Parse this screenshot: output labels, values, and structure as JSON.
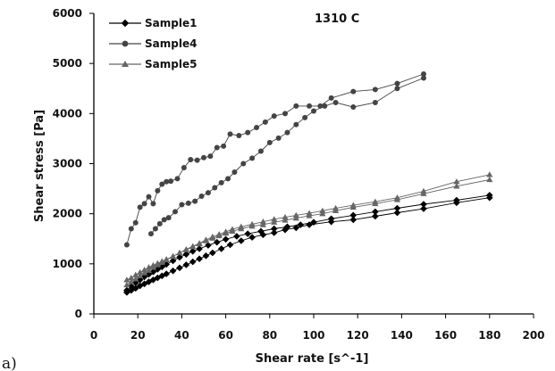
{
  "chart_data": {
    "type": "line",
    "title": "",
    "annotation": "1310 C",
    "panel_label": "a)",
    "xlabel": "Shear rate [s^-1]",
    "ylabel": "Shear stress [Pa]",
    "xlim": [
      0,
      200
    ],
    "ylim": [
      0,
      6000
    ],
    "xticks": [
      "0",
      "20",
      "40",
      "60",
      "80",
      "100",
      "120",
      "140",
      "160",
      "180",
      "200"
    ],
    "yticks": [
      "0",
      "1000",
      "2000",
      "3000",
      "4000",
      "5000",
      "6000"
    ],
    "grid": false,
    "legend_position": "top-left",
    "series": [
      {
        "name": "Sample1",
        "marker": "diamond",
        "color": "#000000",
        "branches": [
          {
            "x": [
              15,
              17,
              19,
              21,
              23,
              25,
              27,
              29,
              31,
              33,
              36,
              39,
              42,
              45,
              48,
              51,
              54,
              58,
              62,
              67,
              72,
              77,
              82,
              87,
              92,
              98,
              108,
              118,
              128,
              138,
              150,
              165,
              180
            ],
            "y": [
              430,
              470,
              510,
              560,
              600,
              640,
              680,
              720,
              760,
              800,
              860,
              920,
              980,
              1040,
              1100,
              1160,
              1220,
              1300,
              1380,
              1460,
              1530,
              1580,
              1620,
              1680,
              1720,
              1780,
              1840,
              1880,
              1950,
              2020,
              2100,
              2220,
              2320
            ]
          },
          {
            "x": [
              15,
              17,
              19,
              21,
              23,
              25,
              27,
              29,
              31,
              33,
              36,
              39,
              42,
              45,
              48,
              52,
              56,
              60,
              65,
              70,
              76,
              82,
              88,
              94,
              100,
              108,
              118,
              128,
              138,
              150,
              165,
              180
            ],
            "y": [
              470,
              550,
              620,
              680,
              740,
              790,
              840,
              890,
              940,
              990,
              1060,
              1130,
              1190,
              1250,
              1300,
              1370,
              1430,
              1490,
              1550,
              1600,
              1650,
              1700,
              1740,
              1780,
              1830,
              1900,
              1970,
              2040,
              2110,
              2190,
              2270,
              2370
            ]
          }
        ]
      },
      {
        "name": "Sample4",
        "marker": "circle",
        "color": "#444444",
        "branches": [
          {
            "x": [
              15,
              17,
              19,
              21,
              23,
              25,
              27,
              29,
              31,
              33,
              35,
              38,
              41,
              44,
              47,
              50,
              53,
              56,
              59,
              62,
              66,
              70,
              74,
              78,
              82,
              87,
              92,
              98,
              103,
              108,
              118,
              128,
              138,
              150
            ],
            "y": [
              1380,
              1700,
              1820,
              2130,
              2200,
              2340,
              2200,
              2460,
              2590,
              2640,
              2650,
              2700,
              2920,
              3080,
              3070,
              3120,
              3150,
              3320,
              3350,
              3590,
              3560,
              3620,
              3720,
              3830,
              3950,
              4000,
              4150,
              4150,
              4150,
              4310,
              4440,
              4480,
              4600,
              4790
            ]
          },
          {
            "x": [
              26,
              28,
              30,
              32,
              34,
              37,
              40,
              43,
              46,
              49,
              52,
              55,
              58,
              61,
              64,
              68,
              72,
              76,
              80,
              84,
              88,
              92,
              96,
              100,
              105,
              110,
              118,
              128,
              138,
              150
            ],
            "y": [
              1600,
              1700,
              1800,
              1880,
              1920,
              2040,
              2180,
              2210,
              2250,
              2350,
              2420,
              2520,
              2620,
              2700,
              2830,
              3000,
              3110,
              3250,
              3420,
              3510,
              3620,
              3780,
              3920,
              4050,
              4150,
              4220,
              4130,
              4220,
              4500,
              4710
            ]
          }
        ]
      },
      {
        "name": "Sample5",
        "marker": "triangle",
        "color": "#666666",
        "branches": [
          {
            "x": [
              15,
              17,
              19,
              21,
              23,
              25,
              27,
              29,
              31,
              33,
              36,
              39,
              42,
              45,
              48,
              51,
              54,
              57,
              60,
              63,
              67,
              72,
              77,
              82,
              87,
              92,
              98,
              104,
              110,
              118,
              128,
              138,
              150,
              165,
              180
            ],
            "y": [
              680,
              720,
              780,
              830,
              880,
              930,
              970,
              1010,
              1050,
              1090,
              1150,
              1220,
              1280,
              1340,
              1400,
              1460,
              1510,
              1560,
              1610,
              1650,
              1700,
              1750,
              1780,
              1830,
              1870,
              1910,
              1960,
              2000,
              2060,
              2130,
              2200,
              2280,
              2400,
              2550,
              2680
            ]
          },
          {
            "x": [
              15,
              17,
              19,
              21,
              23,
              25,
              27,
              29,
              31,
              33,
              36,
              39,
              42,
              45,
              48,
              51,
              54,
              57,
              60,
              63,
              67,
              72,
              77,
              82,
              87,
              92,
              98,
              104,
              110,
              118,
              128,
              138,
              150,
              165,
              180
            ],
            "y": [
              580,
              640,
              700,
              760,
              820,
              870,
              930,
              980,
              1030,
              1080,
              1150,
              1220,
              1290,
              1350,
              1410,
              1480,
              1540,
              1590,
              1640,
              1690,
              1740,
              1790,
              1840,
              1890,
              1930,
              1970,
              2010,
              2060,
              2110,
              2170,
              2240,
              2320,
              2450,
              2640,
              2780
            ]
          }
        ]
      }
    ]
  }
}
